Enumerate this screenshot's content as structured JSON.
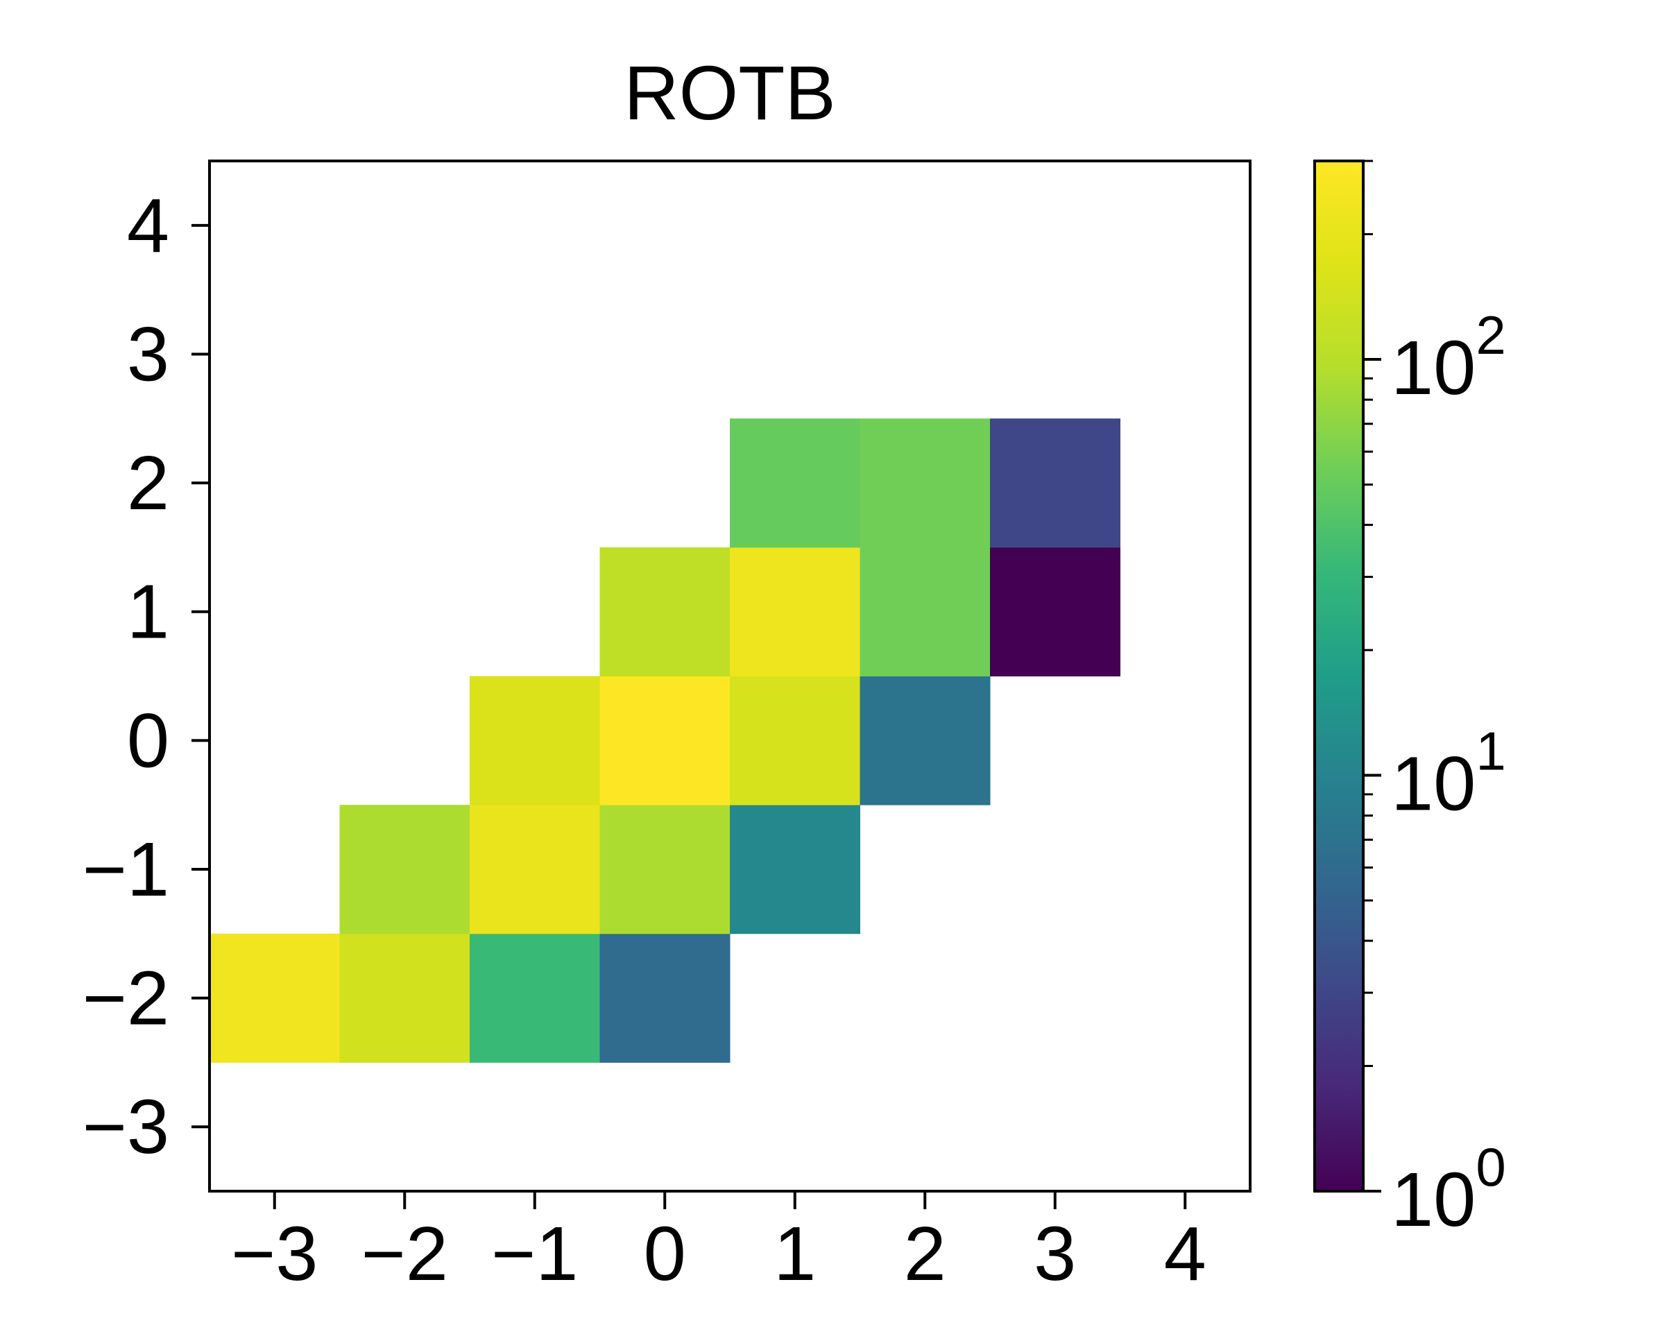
{
  "chart_data": {
    "type": "heatmap",
    "title": "ROTB",
    "xlabel": "",
    "ylabel": "",
    "xlim": [
      -3.5,
      4.5
    ],
    "ylim": [
      -3.5,
      4.5
    ],
    "x_ticks": [
      -3,
      -2,
      -1,
      0,
      1,
      2,
      3,
      4
    ],
    "y_ticks": [
      -3,
      -2,
      -1,
      0,
      1,
      2,
      3,
      4
    ],
    "x_tick_labels": [
      "−3",
      "−2",
      "−1",
      "0",
      "1",
      "2",
      "3",
      "4"
    ],
    "y_tick_labels": [
      "−3",
      "−2",
      "−1",
      "0",
      "1",
      "2",
      "3",
      "4"
    ],
    "colorscale": "viridis",
    "color_scale_type": "log",
    "color_range": [
      1,
      300
    ],
    "colorbar": {
      "major_ticks": [
        1,
        10,
        100
      ],
      "tick_labels": [
        {
          "base": "10",
          "exp": "0"
        },
        {
          "base": "10",
          "exp": "1"
        },
        {
          "base": "10",
          "exp": "2"
        }
      ]
    },
    "cells": [
      {
        "x": -3,
        "y": -2,
        "value": 240
      },
      {
        "x": -2,
        "y": -2,
        "value": 140
      },
      {
        "x": -1,
        "y": -2,
        "value": 32
      },
      {
        "x": 0,
        "y": -2,
        "value": 6
      },
      {
        "x": -2,
        "y": -1,
        "value": 90
      },
      {
        "x": -1,
        "y": -1,
        "value": 210
      },
      {
        "x": 0,
        "y": -1,
        "value": 90
      },
      {
        "x": 1,
        "y": -1,
        "value": 11
      },
      {
        "x": -1,
        "y": 0,
        "value": 160
      },
      {
        "x": 0,
        "y": 0,
        "value": 300
      },
      {
        "x": 1,
        "y": 0,
        "value": 150
      },
      {
        "x": 2,
        "y": 0,
        "value": 7
      },
      {
        "x": 0,
        "y": 1,
        "value": 110
      },
      {
        "x": 1,
        "y": 1,
        "value": 230
      },
      {
        "x": 2,
        "y": 1,
        "value": 55
      },
      {
        "x": 3,
        "y": 1,
        "value": 1
      },
      {
        "x": 1,
        "y": 2,
        "value": 50
      },
      {
        "x": 2,
        "y": 2,
        "value": 55
      },
      {
        "x": 3,
        "y": 2,
        "value": 3
      }
    ]
  }
}
